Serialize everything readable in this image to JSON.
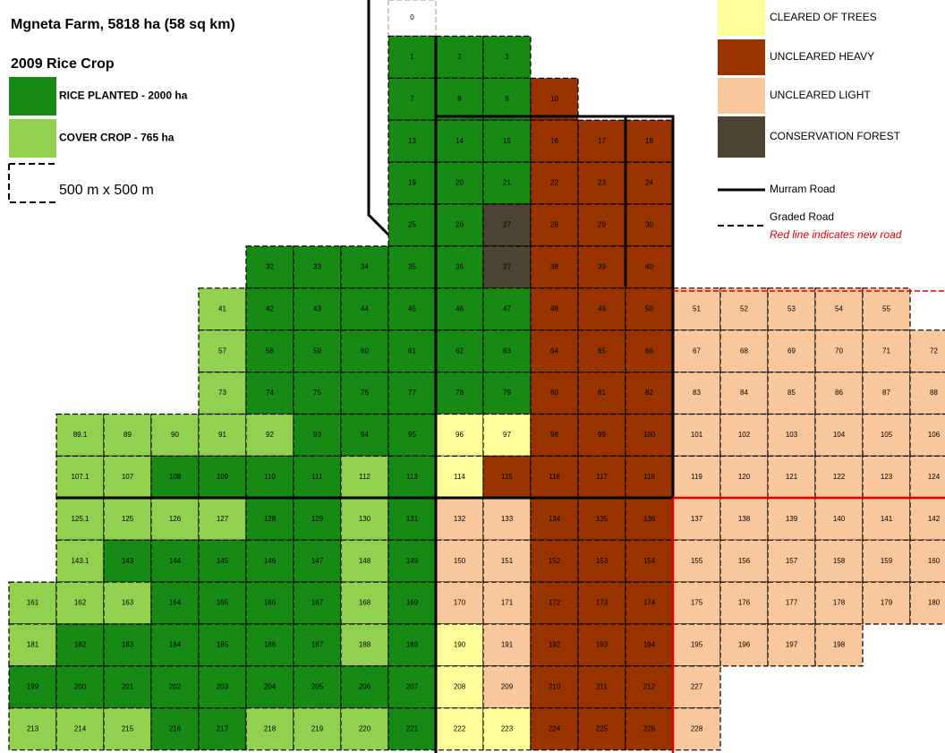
{
  "header": {
    "title": "Mgneta Farm, 5818 ha (58 sq km)",
    "subtitle": "2009 Rice Crop"
  },
  "legend": {
    "cover_types": [
      {
        "label": "RICE PLANTED - 2000 ha",
        "color": "#178a15"
      },
      {
        "label": "COVER CROP - 765 ha",
        "color": "#92d050"
      },
      {
        "label": "CLEARED OF TREES",
        "color": "#ffff99"
      },
      {
        "label": "UNCLEARED HEAVY",
        "color": "#993300"
      },
      {
        "label": "UNCLEARED LIGHT",
        "color": "#f9c79c"
      },
      {
        "label": "CONSERVATION FOREST",
        "color": "#4d4331"
      }
    ],
    "scale": "500 m x 500 m",
    "murram": "Murram Road",
    "graded": "Graded Road",
    "new_road": "Red line indicates new road"
  },
  "grid": {
    "rows": [
      [
        null,
        null,
        null,
        null,
        null,
        null,
        null,
        null,
        {
          "label": "0"
        }
      ],
      [
        null,
        null,
        null,
        null,
        null,
        null,
        null,
        null,
        {
          "label": "1",
          "cover": 0
        },
        {
          "label": "2",
          "cover": 0
        },
        {
          "label": "3",
          "cover": 0
        }
      ],
      [
        null,
        null,
        null,
        null,
        null,
        null,
        null,
        null,
        {
          "label": "7",
          "cover": 0
        },
        {
          "label": "8",
          "cover": 0
        },
        {
          "label": "9",
          "cover": 0
        },
        {
          "label": "10",
          "cover": 3
        }
      ],
      [
        null,
        null,
        null,
        null,
        null,
        null,
        null,
        null,
        {
          "label": "13",
          "cover": 0
        },
        {
          "label": "14",
          "cover": 0
        },
        {
          "label": "15",
          "cover": 0
        },
        {
          "label": "16",
          "cover": 3
        },
        {
          "label": "17",
          "cover": 3
        },
        {
          "label": "18",
          "cover": 3
        }
      ],
      [
        null,
        null,
        null,
        null,
        null,
        null,
        null,
        null,
        {
          "label": "19",
          "cover": 0
        },
        {
          "label": "20",
          "cover": 0
        },
        {
          "label": "21",
          "cover": 0
        },
        {
          "label": "22",
          "cover": 3
        },
        {
          "label": "23",
          "cover": 3
        },
        {
          "label": "24",
          "cover": 3
        }
      ],
      [
        null,
        null,
        null,
        null,
        null,
        null,
        null,
        null,
        {
          "label": "25",
          "cover": 0
        },
        {
          "label": "26",
          "cover": 0
        },
        {
          "label": "27",
          "cover": 5
        },
        {
          "label": "28",
          "cover": 3
        },
        {
          "label": "29",
          "cover": 3
        },
        {
          "label": "30",
          "cover": 3
        }
      ],
      [
        null,
        null,
        null,
        null,
        null,
        {
          "label": "32",
          "cover": 0
        },
        {
          "label": "33",
          "cover": 0
        },
        {
          "label": "34",
          "cover": 0
        },
        {
          "label": "35",
          "cover": 0
        },
        {
          "label": "36",
          "cover": 0
        },
        {
          "label": "37",
          "cover": 5
        },
        {
          "label": "38",
          "cover": 3
        },
        {
          "label": "39",
          "cover": 3
        },
        {
          "label": "40",
          "cover": 3
        }
      ],
      [
        null,
        null,
        null,
        null,
        {
          "label": "41",
          "cover": 1
        },
        {
          "label": "42",
          "cover": 0
        },
        {
          "label": "43",
          "cover": 0
        },
        {
          "label": "44",
          "cover": 0
        },
        {
          "label": "45",
          "cover": 0
        },
        {
          "label": "46",
          "cover": 0
        },
        {
          "label": "47",
          "cover": 0
        },
        {
          "label": "48",
          "cover": 3
        },
        {
          "label": "49",
          "cover": 3
        },
        {
          "label": "50",
          "cover": 3
        },
        {
          "label": "51",
          "cover": 4
        },
        {
          "label": "52",
          "cover": 4
        },
        {
          "label": "53",
          "cover": 4
        },
        {
          "label": "54",
          "cover": 4
        },
        {
          "label": "55",
          "cover": 4
        }
      ],
      [
        null,
        null,
        null,
        null,
        {
          "label": "57",
          "cover": 1
        },
        {
          "label": "58",
          "cover": 0
        },
        {
          "label": "59",
          "cover": 0
        },
        {
          "label": "60",
          "cover": 0
        },
        {
          "label": "61",
          "cover": 0
        },
        {
          "label": "62",
          "cover": 0
        },
        {
          "label": "63",
          "cover": 0
        },
        {
          "label": "64",
          "cover": 3
        },
        {
          "label": "65",
          "cover": 3
        },
        {
          "label": "66",
          "cover": 3
        },
        {
          "label": "67",
          "cover": 4
        },
        {
          "label": "68",
          "cover": 4
        },
        {
          "label": "69",
          "cover": 4
        },
        {
          "label": "70",
          "cover": 4
        },
        {
          "label": "71",
          "cover": 4
        },
        {
          "label": "72",
          "cover": 4
        }
      ],
      [
        null,
        null,
        null,
        null,
        {
          "label": "73",
          "cover": 1
        },
        {
          "label": "74",
          "cover": 0
        },
        {
          "label": "75",
          "cover": 0
        },
        {
          "label": "76",
          "cover": 0
        },
        {
          "label": "77",
          "cover": 0
        },
        {
          "label": "78",
          "cover": 0
        },
        {
          "label": "79",
          "cover": 0
        },
        {
          "label": "80",
          "cover": 3
        },
        {
          "label": "81",
          "cover": 3
        },
        {
          "label": "82",
          "cover": 3
        },
        {
          "label": "83",
          "cover": 4
        },
        {
          "label": "84",
          "cover": 4
        },
        {
          "label": "85",
          "cover": 4
        },
        {
          "label": "86",
          "cover": 4
        },
        {
          "label": "87",
          "cover": 4
        },
        {
          "label": "88",
          "cover": 4
        }
      ],
      [
        null,
        {
          "label": "89.1",
          "cover": 1
        },
        {
          "label": "89",
          "cover": 1
        },
        {
          "label": "90",
          "cover": 1
        },
        {
          "label": "91",
          "cover": 1
        },
        {
          "label": "92",
          "cover": 1
        },
        {
          "label": "93",
          "cover": 0
        },
        {
          "label": "94",
          "cover": 0
        },
        {
          "label": "95",
          "cover": 0
        },
        {
          "label": "96",
          "cover": 2
        },
        {
          "label": "97",
          "cover": 2
        },
        {
          "label": "98",
          "cover": 3
        },
        {
          "label": "99",
          "cover": 3
        },
        {
          "label": "100",
          "cover": 3
        },
        {
          "label": "101",
          "cover": 4
        },
        {
          "label": "102",
          "cover": 4
        },
        {
          "label": "103",
          "cover": 4
        },
        {
          "label": "104",
          "cover": 4
        },
        {
          "label": "105",
          "cover": 4
        },
        {
          "label": "106",
          "cover": 4
        }
      ],
      [
        null,
        {
          "label": "107.1",
          "cover": 1
        },
        {
          "label": "107",
          "cover": 1
        },
        {
          "label": "108",
          "cover": 0
        },
        {
          "label": "109",
          "cover": 0
        },
        {
          "label": "110",
          "cover": 0
        },
        {
          "label": "111",
          "cover": 0
        },
        {
          "label": "112",
          "cover": 1
        },
        {
          "label": "113",
          "cover": 0
        },
        {
          "label": "114",
          "cover": 2
        },
        {
          "label": "115",
          "cover": 3
        },
        {
          "label": "116",
          "cover": 3
        },
        {
          "label": "117",
          "cover": 3
        },
        {
          "label": "118",
          "cover": 3
        },
        {
          "label": "119",
          "cover": 4
        },
        {
          "label": "120",
          "cover": 4
        },
        {
          "label": "121",
          "cover": 4
        },
        {
          "label": "122",
          "cover": 4
        },
        {
          "label": "123",
          "cover": 4
        },
        {
          "label": "124",
          "cover": 4
        }
      ],
      [
        null,
        {
          "label": "125.1",
          "cover": 1
        },
        {
          "label": "125",
          "cover": 1
        },
        {
          "label": "126",
          "cover": 1
        },
        {
          "label": "127",
          "cover": 1
        },
        {
          "label": "128",
          "cover": 0
        },
        {
          "label": "129",
          "cover": 0
        },
        {
          "label": "130",
          "cover": 1
        },
        {
          "label": "131",
          "cover": 0
        },
        {
          "label": "132",
          "cover": 4
        },
        {
          "label": "133",
          "cover": 4
        },
        {
          "label": "134",
          "cover": 3
        },
        {
          "label": "135",
          "cover": 3
        },
        {
          "label": "136",
          "cover": 3
        },
        {
          "label": "137",
          "cover": 4
        },
        {
          "label": "138",
          "cover": 4
        },
        {
          "label": "139",
          "cover": 4
        },
        {
          "label": "140",
          "cover": 4
        },
        {
          "label": "141",
          "cover": 4
        },
        {
          "label": "142",
          "cover": 4
        }
      ],
      [
        null,
        {
          "label": "143.1",
          "cover": 1
        },
        {
          "label": "143",
          "cover": 0
        },
        {
          "label": "144",
          "cover": 0
        },
        {
          "label": "145",
          "cover": 0
        },
        {
          "label": "146",
          "cover": 0
        },
        {
          "label": "147",
          "cover": 0
        },
        {
          "label": "148",
          "cover": 1
        },
        {
          "label": "149",
          "cover": 0
        },
        {
          "label": "150",
          "cover": 4
        },
        {
          "label": "151",
          "cover": 4
        },
        {
          "label": "152",
          "cover": 3
        },
        {
          "label": "153",
          "cover": 3
        },
        {
          "label": "154",
          "cover": 3
        },
        {
          "label": "155",
          "cover": 4
        },
        {
          "label": "156",
          "cover": 4
        },
        {
          "label": "157",
          "cover": 4
        },
        {
          "label": "158",
          "cover": 4
        },
        {
          "label": "159",
          "cover": 4
        },
        {
          "label": "160",
          "cover": 4
        }
      ],
      [
        {
          "label": "161",
          "cover": 1
        },
        {
          "label": "162",
          "cover": 1
        },
        {
          "label": "163",
          "cover": 1
        },
        {
          "label": "164",
          "cover": 0
        },
        {
          "label": "165",
          "cover": 0
        },
        {
          "label": "166",
          "cover": 0
        },
        {
          "label": "167",
          "cover": 0
        },
        {
          "label": "168",
          "cover": 1
        },
        {
          "label": "169",
          "cover": 0
        },
        {
          "label": "170",
          "cover": 4
        },
        {
          "label": "171",
          "cover": 4
        },
        {
          "label": "172",
          "cover": 3
        },
        {
          "label": "173",
          "cover": 3
        },
        {
          "label": "174",
          "cover": 3
        },
        {
          "label": "175",
          "cover": 4
        },
        {
          "label": "176",
          "cover": 4
        },
        {
          "label": "177",
          "cover": 4
        },
        {
          "label": "178",
          "cover": 4
        },
        {
          "label": "179",
          "cover": 4
        },
        {
          "label": "180",
          "cover": 4
        }
      ],
      [
        {
          "label": "181",
          "cover": 1
        },
        {
          "label": "182",
          "cover": 0
        },
        {
          "label": "183",
          "cover": 0
        },
        {
          "label": "184",
          "cover": 0
        },
        {
          "label": "185",
          "cover": 0
        },
        {
          "label": "186",
          "cover": 0
        },
        {
          "label": "187",
          "cover": 0
        },
        {
          "label": "188",
          "cover": 1
        },
        {
          "label": "189",
          "cover": 0
        },
        {
          "label": "190",
          "cover": 2
        },
        {
          "label": "191",
          "cover": 4
        },
        {
          "label": "192",
          "cover": 3
        },
        {
          "label": "193",
          "cover": 3
        },
        {
          "label": "194",
          "cover": 3
        },
        {
          "label": "195",
          "cover": 4
        },
        {
          "label": "196",
          "cover": 4
        },
        {
          "label": "197",
          "cover": 4
        },
        {
          "label": "198",
          "cover": 4
        }
      ],
      [
        {
          "label": "199",
          "cover": 0
        },
        {
          "label": "200",
          "cover": 0
        },
        {
          "label": "201",
          "cover": 0
        },
        {
          "label": "202",
          "cover": 0
        },
        {
          "label": "203",
          "cover": 0
        },
        {
          "label": "204",
          "cover": 0
        },
        {
          "label": "205",
          "cover": 0
        },
        {
          "label": "206",
          "cover": 0
        },
        {
          "label": "207",
          "cover": 0
        },
        {
          "label": "208",
          "cover": 2
        },
        {
          "label": "209",
          "cover": 4
        },
        {
          "label": "210",
          "cover": 3
        },
        {
          "label": "211",
          "cover": 3
        },
        {
          "label": "212",
          "cover": 3
        },
        {
          "label": "227",
          "cover": 4
        }
      ],
      [
        {
          "label": "213",
          "cover": 1
        },
        {
          "label": "214",
          "cover": 1
        },
        {
          "label": "215",
          "cover": 1
        },
        {
          "label": "216",
          "cover": 0
        },
        {
          "label": "217",
          "cover": 0
        },
        {
          "label": "218",
          "cover": 1
        },
        {
          "label": "219",
          "cover": 1
        },
        {
          "label": "220",
          "cover": 1
        },
        {
          "label": "221",
          "cover": 0
        },
        {
          "label": "222",
          "cover": 2
        },
        {
          "label": "223",
          "cover": 2
        },
        {
          "label": "224",
          "cover": 3
        },
        {
          "label": "225",
          "cover": 3
        },
        {
          "label": "226",
          "cover": 3
        },
        {
          "label": "228",
          "cover": 4
        }
      ]
    ]
  }
}
